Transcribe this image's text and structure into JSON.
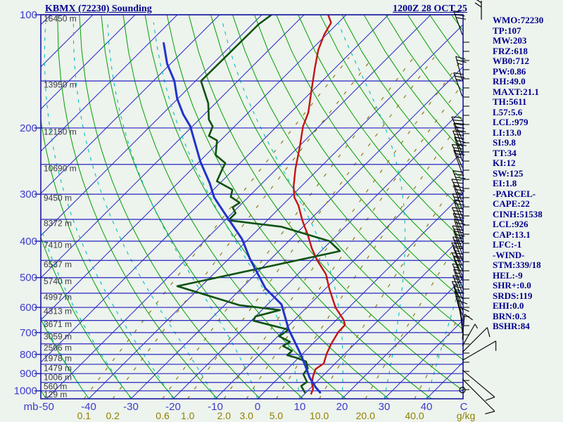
{
  "header": {
    "title": "KBMX (72230) Sounding",
    "datetime": "1200Z 28 OCT 25"
  },
  "stats_panel": {
    "lines": [
      "WMO:72230",
      "TP:107",
      "MW:203",
      "FRZ:618",
      "WB0:712",
      "PW:0.86",
      "RH:49.0",
      "MAXT:21.1",
      "TH:5611",
      "L57:5.6",
      "LCL:979",
      "LI:13.0",
      "SI:9.8",
      "TT:34",
      "KI:12",
      "SW:125",
      "EI:1.8",
      "-PARCEL-",
      "CAPE:22",
      "CINH:51538",
      "LCL:926",
      "CAP:13.1",
      "LFC:-1",
      "-WIND-",
      "STM:339/18",
      "HEL:-9",
      "SHR+:0.0",
      "SRDS:119",
      "EHI:0.0",
      "BRN:0.3",
      "BSHR:84"
    ]
  },
  "colors": {
    "background": "#edf3ed",
    "border": "#1a1aa0",
    "pressure_line": "#2626c0",
    "isotherm": "#2a2ac8",
    "dry_adiabat": "#00a000",
    "moist_adiabat": "#00bfbf",
    "mixing_ratio": "#8a7a10",
    "axis_label": "#3c3ccd",
    "height_label": "#3a3a42",
    "mixing_label": "#8f8000",
    "temperature_trace": "#c41414",
    "dewpoint_trace": "#0e5212",
    "parcel_trace": "#2233cc",
    "wind_barb": "#000000"
  },
  "chart_data": {
    "type": "line",
    "chart_kind": "skew-t-log-p-sounding",
    "axes": {
      "pressure_unit_label": "mb",
      "temp_unit_label": "C",
      "mixing_unit_label": "g/kg",
      "pressure_tick_labels": [
        100,
        200,
        300,
        400,
        500,
        600,
        700,
        800,
        900,
        1000
      ],
      "pressure_lines": [
        100,
        150,
        200,
        250,
        300,
        350,
        400,
        450,
        500,
        550,
        600,
        650,
        700,
        750,
        800,
        850,
        900,
        950,
        1000
      ],
      "pressure_range": [
        100,
        1050
      ],
      "temp_tick_labels": [
        -50,
        -40,
        -30,
        -20,
        -10,
        0,
        10,
        20,
        30,
        40
      ],
      "isotherms_celsius": {
        "min": -140,
        "max": 40,
        "step": 10
      },
      "dry_adiabats_kelvin": {
        "min": 220,
        "max": 460,
        "step": 10
      },
      "moist_adiabats_start_celsius": {
        "min": -60,
        "max": 40,
        "step": 10
      },
      "mixing_ratio_lines_gkg": [
        0.1,
        0.2,
        0.6,
        1.0,
        2.0,
        3.0,
        5.0,
        10.0,
        20.0,
        40.0
      ],
      "height_labels": [
        {
          "p": 100,
          "label": "16450 m"
        },
        {
          "p": 150,
          "label": "13950 m"
        },
        {
          "p": 200,
          "label": "12150 m"
        },
        {
          "p": 250,
          "label": "10690 m"
        },
        {
          "p": 300,
          "label": "9450 m"
        },
        {
          "p": 350,
          "label": "8372 m"
        },
        {
          "p": 400,
          "label": "7410 m"
        },
        {
          "p": 450,
          "label": "6537 m"
        },
        {
          "p": 500,
          "label": "5740 m"
        },
        {
          "p": 550,
          "label": "4997 m"
        },
        {
          "p": 600,
          "label": "4313 m"
        },
        {
          "p": 650,
          "label": "3671 m"
        },
        {
          "p": 700,
          "label": "3059 m"
        },
        {
          "p": 750,
          "label": "2506 m"
        },
        {
          "p": 800,
          "label": "1978 m"
        },
        {
          "p": 850,
          "label": "1479 m"
        },
        {
          "p": 900,
          "label": "1006 m"
        },
        {
          "p": 950,
          "label": "560 m"
        },
        {
          "p": 1000,
          "label": "129 m"
        }
      ]
    },
    "series": [
      {
        "name": "temperature",
        "color_key": "temperature_trace",
        "width": 2.4,
        "points": [
          {
            "p": 100,
            "t": -74.3
          },
          {
            "p": 105,
            "t": -71.7
          },
          {
            "p": 113,
            "t": -70.5
          },
          {
            "p": 124,
            "t": -68.3
          },
          {
            "p": 139,
            "t": -64.7
          },
          {
            "p": 158,
            "t": -60.5
          },
          {
            "p": 182,
            "t": -55.8
          },
          {
            "p": 198,
            "t": -53.8
          },
          {
            "p": 226,
            "t": -49.5
          },
          {
            "p": 257,
            "t": -45.5
          },
          {
            "p": 286,
            "t": -41.8
          },
          {
            "p": 306,
            "t": -39.0
          },
          {
            "p": 321,
            "t": -36.2
          },
          {
            "p": 352,
            "t": -31.7
          },
          {
            "p": 367,
            "t": -29.5
          },
          {
            "p": 383,
            "t": -27.2
          },
          {
            "p": 418,
            "t": -22.8
          },
          {
            "p": 449,
            "t": -18.8
          },
          {
            "p": 490,
            "t": -13.3
          },
          {
            "p": 534,
            "t": -9.2
          },
          {
            "p": 600,
            "t": -3.2
          },
          {
            "p": 648,
            "t": 1.7
          },
          {
            "p": 668,
            "t": 3.2
          },
          {
            "p": 697,
            "t": 3.3
          },
          {
            "p": 716,
            "t": 3.7
          },
          {
            "p": 753,
            "t": 4.5
          },
          {
            "p": 797,
            "t": 5.7
          },
          {
            "p": 846,
            "t": 7.3
          },
          {
            "p": 876,
            "t": 6.7
          },
          {
            "p": 915,
            "t": 7.8
          },
          {
            "p": 955,
            "t": 9.2
          },
          {
            "p": 988,
            "t": 10.8
          },
          {
            "p": 1018,
            "t": 11.5
          }
        ]
      },
      {
        "name": "dewpoint",
        "color_key": "dewpoint_trace",
        "width": 2.6,
        "points": [
          {
            "p": 100,
            "t": -87.7
          },
          {
            "p": 106,
            "t": -88.5
          },
          {
            "p": 150,
            "t": -88.7
          },
          {
            "p": 172,
            "t": -81.7
          },
          {
            "p": 190,
            "t": -77.7
          },
          {
            "p": 198,
            "t": -75.2
          },
          {
            "p": 210,
            "t": -73.8
          },
          {
            "p": 216,
            "t": -70.8
          },
          {
            "p": 236,
            "t": -67.7
          },
          {
            "p": 248,
            "t": -63.5
          },
          {
            "p": 257,
            "t": -62.8
          },
          {
            "p": 277,
            "t": -61.2
          },
          {
            "p": 292,
            "t": -55.5
          },
          {
            "p": 305,
            "t": -54.2
          },
          {
            "p": 316,
            "t": -50.7
          },
          {
            "p": 325,
            "t": -51.3
          },
          {
            "p": 337,
            "t": -49.2
          },
          {
            "p": 352,
            "t": -49.2
          },
          {
            "p": 366,
            "t": -35.2
          },
          {
            "p": 400,
            "t": -20.3
          },
          {
            "p": 425,
            "t": -15.5
          },
          {
            "p": 527,
            "t": -45.7
          },
          {
            "p": 592,
            "t": -26.5
          },
          {
            "p": 610,
            "t": -15.7
          },
          {
            "p": 634,
            "t": -20.0
          },
          {
            "p": 651,
            "t": -19.5
          },
          {
            "p": 688,
            "t": -9.0
          },
          {
            "p": 716,
            "t": -9.7
          },
          {
            "p": 741,
            "t": -5.8
          },
          {
            "p": 760,
            "t": -6.5
          },
          {
            "p": 783,
            "t": -3.2
          },
          {
            "p": 804,
            "t": -3.3
          },
          {
            "p": 818,
            "t": -0.3
          },
          {
            "p": 836,
            "t": 2.7
          },
          {
            "p": 872,
            "t": 4.7
          },
          {
            "p": 903,
            "t": 5.0
          },
          {
            "p": 947,
            "t": 7.7
          },
          {
            "p": 971,
            "t": 7.3
          },
          {
            "p": 1010,
            "t": 9.7
          }
        ]
      },
      {
        "name": "parcel",
        "color_key": "parcel_trace",
        "width": 3,
        "points": [
          {
            "p": 119,
            "t": -106.5
          },
          {
            "p": 135,
            "t": -100.8
          },
          {
            "p": 150,
            "t": -95.0
          },
          {
            "p": 167,
            "t": -90.2
          },
          {
            "p": 184,
            "t": -85.0
          },
          {
            "p": 198,
            "t": -80.5
          },
          {
            "p": 246,
            "t": -69.7
          },
          {
            "p": 280,
            "t": -62.5
          },
          {
            "p": 306,
            "t": -58.0
          },
          {
            "p": 352,
            "t": -49.0
          },
          {
            "p": 395,
            "t": -41.5
          },
          {
            "p": 444,
            "t": -35.2
          },
          {
            "p": 534,
            "t": -24.3
          },
          {
            "p": 589,
            "t": -16.7
          },
          {
            "p": 685,
            "t": -9.2
          },
          {
            "p": 797,
            "t": -0.5
          },
          {
            "p": 858,
            "t": 3.5
          },
          {
            "p": 922,
            "t": 7.3
          },
          {
            "p": 975,
            "t": 10.8
          },
          {
            "p": 1010,
            "t": 13.3
          }
        ]
      }
    ],
    "wind_barbs": [
      {
        "p": 113,
        "dir": 340,
        "spd": 30
      },
      {
        "p": 150,
        "dir": 345,
        "spd": 25
      },
      {
        "p": 165,
        "dir": 340,
        "spd": 25
      },
      {
        "p": 215,
        "dir": 335,
        "spd": 30
      },
      {
        "p": 225,
        "dir": 340,
        "spd": 30
      },
      {
        "p": 235,
        "dir": 338,
        "spd": 25
      },
      {
        "p": 245,
        "dir": 342,
        "spd": 30
      },
      {
        "p": 255,
        "dir": 336,
        "spd": 25
      },
      {
        "p": 265,
        "dir": 340,
        "spd": 25
      },
      {
        "p": 300,
        "dir": 338,
        "spd": 30
      },
      {
        "p": 315,
        "dir": 335,
        "spd": 25
      },
      {
        "p": 330,
        "dir": 340,
        "spd": 25
      },
      {
        "p": 345,
        "dir": 337,
        "spd": 25
      },
      {
        "p": 360,
        "dir": 340,
        "spd": 20
      },
      {
        "p": 375,
        "dir": 336,
        "spd": 25
      },
      {
        "p": 390,
        "dir": 339,
        "spd": 20
      },
      {
        "p": 405,
        "dir": 341,
        "spd": 20
      },
      {
        "p": 420,
        "dir": 337,
        "spd": 20
      },
      {
        "p": 435,
        "dir": 340,
        "spd": 20
      },
      {
        "p": 450,
        "dir": 338,
        "spd": 20
      },
      {
        "p": 465,
        "dir": 335,
        "spd": 20
      },
      {
        "p": 480,
        "dir": 339,
        "spd": 15
      },
      {
        "p": 495,
        "dir": 336,
        "spd": 20
      },
      {
        "p": 510,
        "dir": 340,
        "spd": 15
      },
      {
        "p": 530,
        "dir": 337,
        "spd": 15
      },
      {
        "p": 550,
        "dir": 340,
        "spd": 15
      },
      {
        "p": 570,
        "dir": 338,
        "spd": 15
      },
      {
        "p": 590,
        "dir": 336,
        "spd": 15
      },
      {
        "p": 610,
        "dir": 340,
        "spd": 15
      },
      {
        "p": 630,
        "dir": 342,
        "spd": 10
      },
      {
        "p": 650,
        "dir": 345,
        "spd": 10
      },
      {
        "p": 670,
        "dir": 350,
        "spd": 10
      },
      {
        "p": 700,
        "dir": 355,
        "spd": 10
      },
      {
        "p": 730,
        "dir": 5,
        "spd": 10
      },
      {
        "p": 760,
        "dir": 30,
        "spd": 5
      },
      {
        "p": 790,
        "dir": 45,
        "spd": 10,
        "len": 50
      },
      {
        "p": 830,
        "dir": 60,
        "spd": 10,
        "len": 55
      },
      {
        "p": 880,
        "dir": 130,
        "spd": 10,
        "len": 60
      },
      {
        "p": 930,
        "dir": 135,
        "spd": 10,
        "len": 65
      }
    ],
    "calm_circle_pressure": 995
  }
}
